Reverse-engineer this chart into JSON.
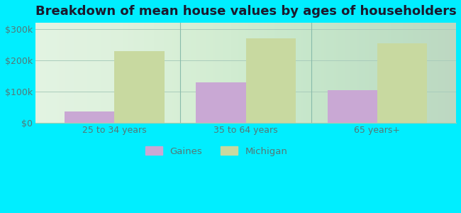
{
  "title": "Breakdown of mean house values by ages of householders",
  "categories": [
    "25 to 34 years",
    "35 to 64 years",
    "65 years+"
  ],
  "gaines_values": [
    35000,
    130000,
    105000
  ],
  "michigan_values": [
    230000,
    270000,
    255000
  ],
  "gaines_color": "#c9a8d4",
  "michigan_color": "#c8d9a0",
  "ylim": [
    0,
    320000
  ],
  "yticks": [
    0,
    100000,
    200000,
    300000
  ],
  "ytick_labels": [
    "$0",
    "$100k",
    "$200k",
    "$300k"
  ],
  "bar_width": 0.38,
  "background_color": "#00eeff",
  "plot_bg_color": "#e8f5e8",
  "title_fontsize": 13,
  "legend_labels": [
    "Gaines",
    "Michigan"
  ],
  "tick_color": "#557777",
  "title_color": "#1a1a2e"
}
